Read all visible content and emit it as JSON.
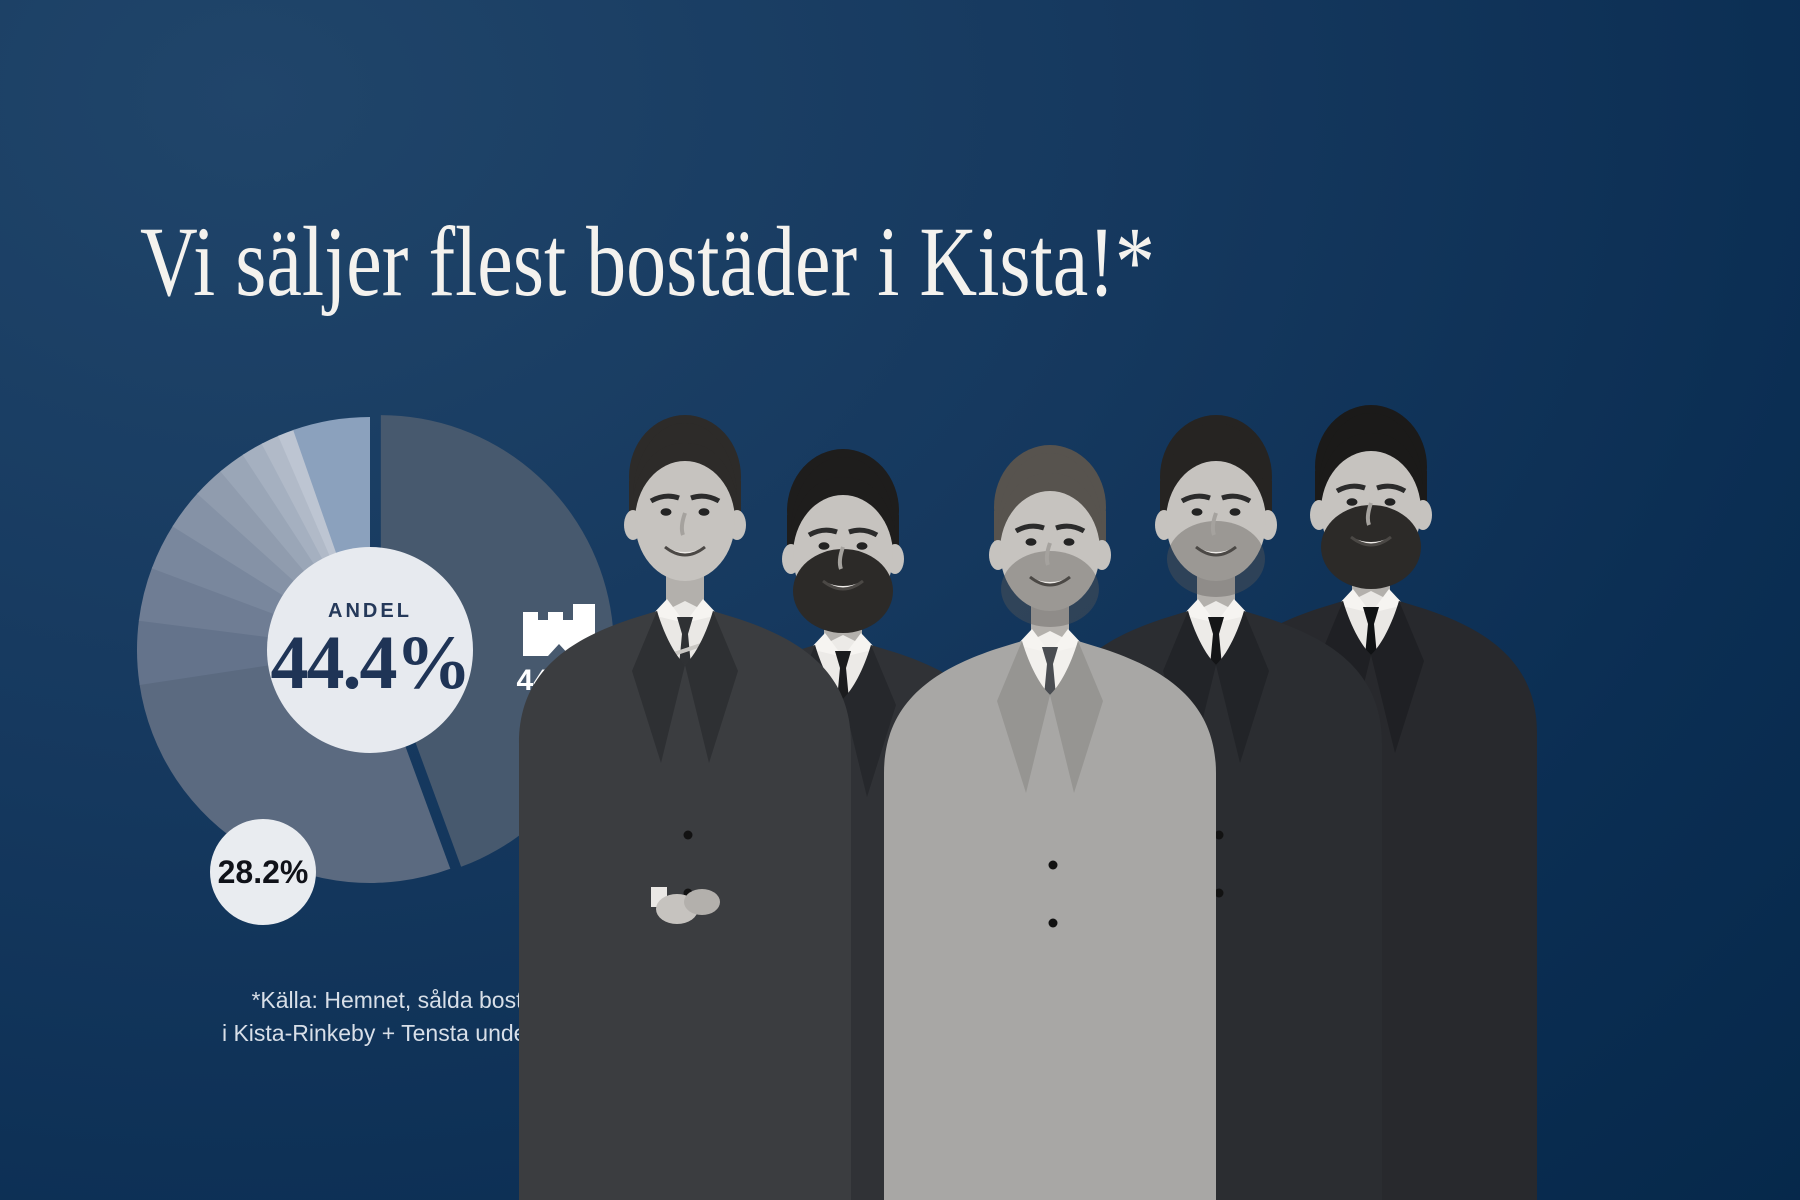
{
  "headline": {
    "text": "Vi säljer flest bostäder i Kista!*"
  },
  "chart_data": {
    "type": "pie",
    "center_caption": "ANDEL",
    "center_value": "44.4%",
    "callout_primary": {
      "value": "44.4%",
      "icon": "castle-logo-icon"
    },
    "callout_secondary": {
      "value": "28.2%"
    },
    "start_angle_deg": 0,
    "direction": "clockwise",
    "unit": "percent",
    "slices": [
      {
        "name": "our-share",
        "value": 44.4,
        "color": "#47596e",
        "exploded": true,
        "label": "44.4%"
      },
      {
        "name": "competitor-1",
        "value": 28.2,
        "color": "#5b6a80",
        "label": "28.2%"
      },
      {
        "name": "competitor-2",
        "value": 4.4,
        "color": "#64738b"
      },
      {
        "name": "competitor-3",
        "value": 3.7,
        "color": "#6f7d94"
      },
      {
        "name": "competitor-4",
        "value": 3.2,
        "color": "#79879d"
      },
      {
        "name": "competitor-5",
        "value": 2.8,
        "color": "#8592a6"
      },
      {
        "name": "competitor-6",
        "value": 2.2,
        "color": "#909cae"
      },
      {
        "name": "competitor-7",
        "value": 1.9,
        "color": "#9aa6b7"
      },
      {
        "name": "competitor-8",
        "value": 1.5,
        "color": "#a5b0c0"
      },
      {
        "name": "competitor-9",
        "value": 1.25,
        "color": "#b1bac8"
      },
      {
        "name": "competitor-10",
        "value": 1.1,
        "color": "#bdc5d2"
      },
      {
        "name": "competitor-11",
        "value": 5.35,
        "color": "#8ba1bd"
      }
    ]
  },
  "footnote": {
    "line1": "*Källa: Hemnet, sålda bostäder",
    "line2": "i Kista-Rinkeby + Tensta under 2024."
  },
  "team": {
    "portrait_count": 5
  },
  "colors": {
    "background_top": "#20456a",
    "background_bottom": "#042647",
    "headline_text": "#f4f2ee",
    "disc_fill": "#e7eaef",
    "disc_text": "#1f3456",
    "callout_text": "#ffffff",
    "footnote_text": "#d8dfe8"
  }
}
